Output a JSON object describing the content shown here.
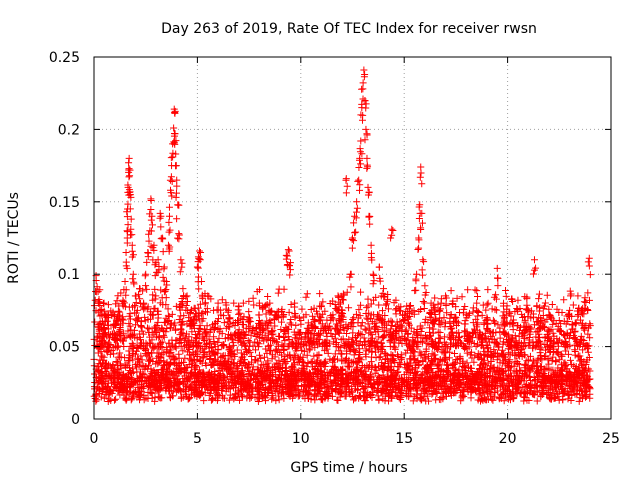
{
  "chart_data": {
    "type": "scatter",
    "title": "Day 263 of 2019, Rate Of TEC Index for receiver rwsn",
    "xlabel": "GPS time / hours",
    "ylabel": "ROTI / TECUs",
    "xlim": [
      0,
      25
    ],
    "ylim": [
      0,
      0.25
    ],
    "xticks": [
      0,
      5,
      10,
      15,
      20,
      25
    ],
    "xtick_labels": [
      "0",
      "5",
      "10",
      "15",
      "20",
      "25"
    ],
    "yticks": [
      0,
      0.05,
      0.1,
      0.15,
      0.2,
      0.25
    ],
    "ytick_labels": [
      "0",
      "0.05",
      "0.1",
      "0.15",
      "0.2",
      "0.25"
    ],
    "grid": true,
    "marker": "+",
    "series": [
      {
        "name": "ROTI",
        "color": "#ff0000",
        "points": [
          [
            0.1,
            0.099
          ],
          [
            0.2,
            0.088
          ],
          [
            0.3,
            0.075
          ],
          [
            0.5,
            0.062
          ],
          [
            0.7,
            0.07
          ],
          [
            1.0,
            0.065
          ],
          [
            1.2,
            0.078
          ],
          [
            1.4,
            0.082
          ],
          [
            1.5,
            0.095
          ],
          [
            1.55,
            0.115
          ],
          [
            1.6,
            0.13
          ],
          [
            1.62,
            0.145
          ],
          [
            1.65,
            0.16
          ],
          [
            1.68,
            0.172
          ],
          [
            1.7,
            0.18
          ],
          [
            1.72,
            0.168
          ],
          [
            1.75,
            0.155
          ],
          [
            1.8,
            0.138
          ],
          [
            1.85,
            0.12
          ],
          [
            1.9,
            0.1
          ],
          [
            2.0,
            0.085
          ],
          [
            2.1,
            0.075
          ],
          [
            2.2,
            0.09
          ],
          [
            2.4,
            0.08
          ],
          [
            2.5,
            0.1
          ],
          [
            2.6,
            0.115
          ],
          [
            2.7,
            0.13
          ],
          [
            2.75,
            0.152
          ],
          [
            2.8,
            0.14
          ],
          [
            2.9,
            0.12
          ],
          [
            3.0,
            0.108
          ],
          [
            3.1,
            0.11
          ],
          [
            3.2,
            0.142
          ],
          [
            3.3,
            0.125
          ],
          [
            3.4,
            0.105
          ],
          [
            3.5,
            0.095
          ],
          [
            3.6,
            0.12
          ],
          [
            3.65,
            0.14
          ],
          [
            3.7,
            0.158
          ],
          [
            3.75,
            0.175
          ],
          [
            3.8,
            0.19
          ],
          [
            3.85,
            0.201
          ],
          [
            3.88,
            0.214
          ],
          [
            3.92,
            0.197
          ],
          [
            3.95,
            0.183
          ],
          [
            4.0,
            0.165
          ],
          [
            4.05,
            0.148
          ],
          [
            4.1,
            0.128
          ],
          [
            4.2,
            0.11
          ],
          [
            4.3,
            0.09
          ],
          [
            4.5,
            0.085
          ],
          [
            4.7,
            0.075
          ],
          [
            5.0,
            0.105
          ],
          [
            5.05,
            0.112
          ],
          [
            5.1,
            0.116
          ],
          [
            5.2,
            0.095
          ],
          [
            5.5,
            0.085
          ],
          [
            6.0,
            0.08
          ],
          [
            6.5,
            0.075
          ],
          [
            7.0,
            0.078
          ],
          [
            7.5,
            0.07
          ],
          [
            8.0,
            0.068
          ],
          [
            8.5,
            0.08
          ],
          [
            8.8,
            0.072
          ],
          [
            9.3,
            0.113
          ],
          [
            9.4,
            0.117
          ],
          [
            9.5,
            0.108
          ],
          [
            9.7,
            0.08
          ],
          [
            10.0,
            0.068
          ],
          [
            10.5,
            0.065
          ],
          [
            11.0,
            0.078
          ],
          [
            11.5,
            0.07
          ],
          [
            11.8,
            0.085
          ],
          [
            12.0,
            0.075
          ],
          [
            12.2,
            0.166
          ],
          [
            12.4,
            0.1
          ],
          [
            12.5,
            0.125
          ],
          [
            12.6,
            0.14
          ],
          [
            12.7,
            0.15
          ],
          [
            12.8,
            0.165
          ],
          [
            12.85,
            0.18
          ],
          [
            12.9,
            0.192
          ],
          [
            12.95,
            0.215
          ],
          [
            13.0,
            0.228
          ],
          [
            13.05,
            0.241
          ],
          [
            13.1,
            0.22
          ],
          [
            13.15,
            0.2
          ],
          [
            13.2,
            0.18
          ],
          [
            13.25,
            0.16
          ],
          [
            13.3,
            0.14
          ],
          [
            13.4,
            0.12
          ],
          [
            13.5,
            0.1
          ],
          [
            13.8,
            0.105
          ],
          [
            14.0,
            0.09
          ],
          [
            14.2,
            0.086
          ],
          [
            14.4,
            0.131
          ],
          [
            14.6,
            0.082
          ],
          [
            15.0,
            0.072
          ],
          [
            15.3,
            0.078
          ],
          [
            15.6,
            0.1
          ],
          [
            15.7,
            0.125
          ],
          [
            15.75,
            0.148
          ],
          [
            15.8,
            0.174
          ],
          [
            15.85,
            0.142
          ],
          [
            15.9,
            0.11
          ],
          [
            16.0,
            0.092
          ],
          [
            16.3,
            0.08
          ],
          [
            16.7,
            0.075
          ],
          [
            17.0,
            0.085
          ],
          [
            17.5,
            0.07
          ],
          [
            18.0,
            0.072
          ],
          [
            18.5,
            0.075
          ],
          [
            19.0,
            0.07
          ],
          [
            19.5,
            0.104
          ],
          [
            19.8,
            0.078
          ],
          [
            20.2,
            0.083
          ],
          [
            20.5,
            0.082
          ],
          [
            21.0,
            0.075
          ],
          [
            21.3,
            0.11
          ],
          [
            21.5,
            0.07
          ],
          [
            22.0,
            0.072
          ],
          [
            22.5,
            0.068
          ],
          [
            23.0,
            0.075
          ],
          [
            23.4,
            0.085
          ],
          [
            23.6,
            0.075
          ],
          [
            23.95,
            0.111
          ]
        ]
      }
    ]
  }
}
